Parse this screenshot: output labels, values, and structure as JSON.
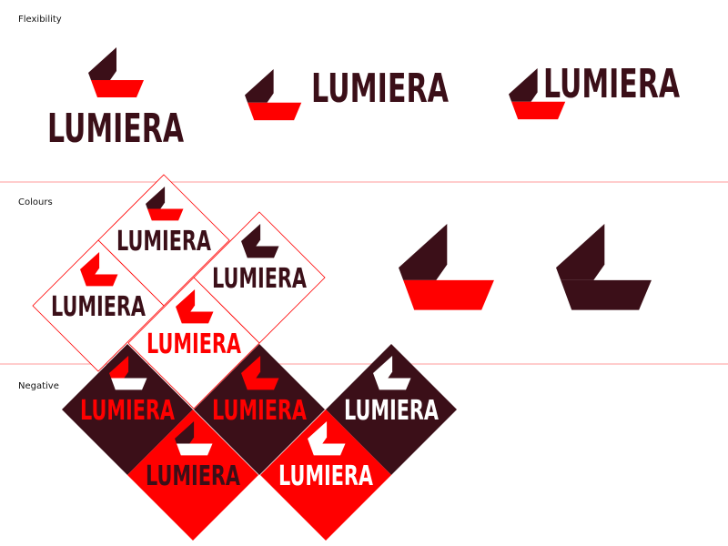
{
  "brand": {
    "name": "LUMIERA"
  },
  "sections": {
    "flexibility": "Flexibility",
    "colours": "Colours",
    "negative": "Negative"
  },
  "colors": {
    "dark": "#3b0f18",
    "red": "#ff0000",
    "white": "#ffffff",
    "divider": "#ffbcbc"
  }
}
